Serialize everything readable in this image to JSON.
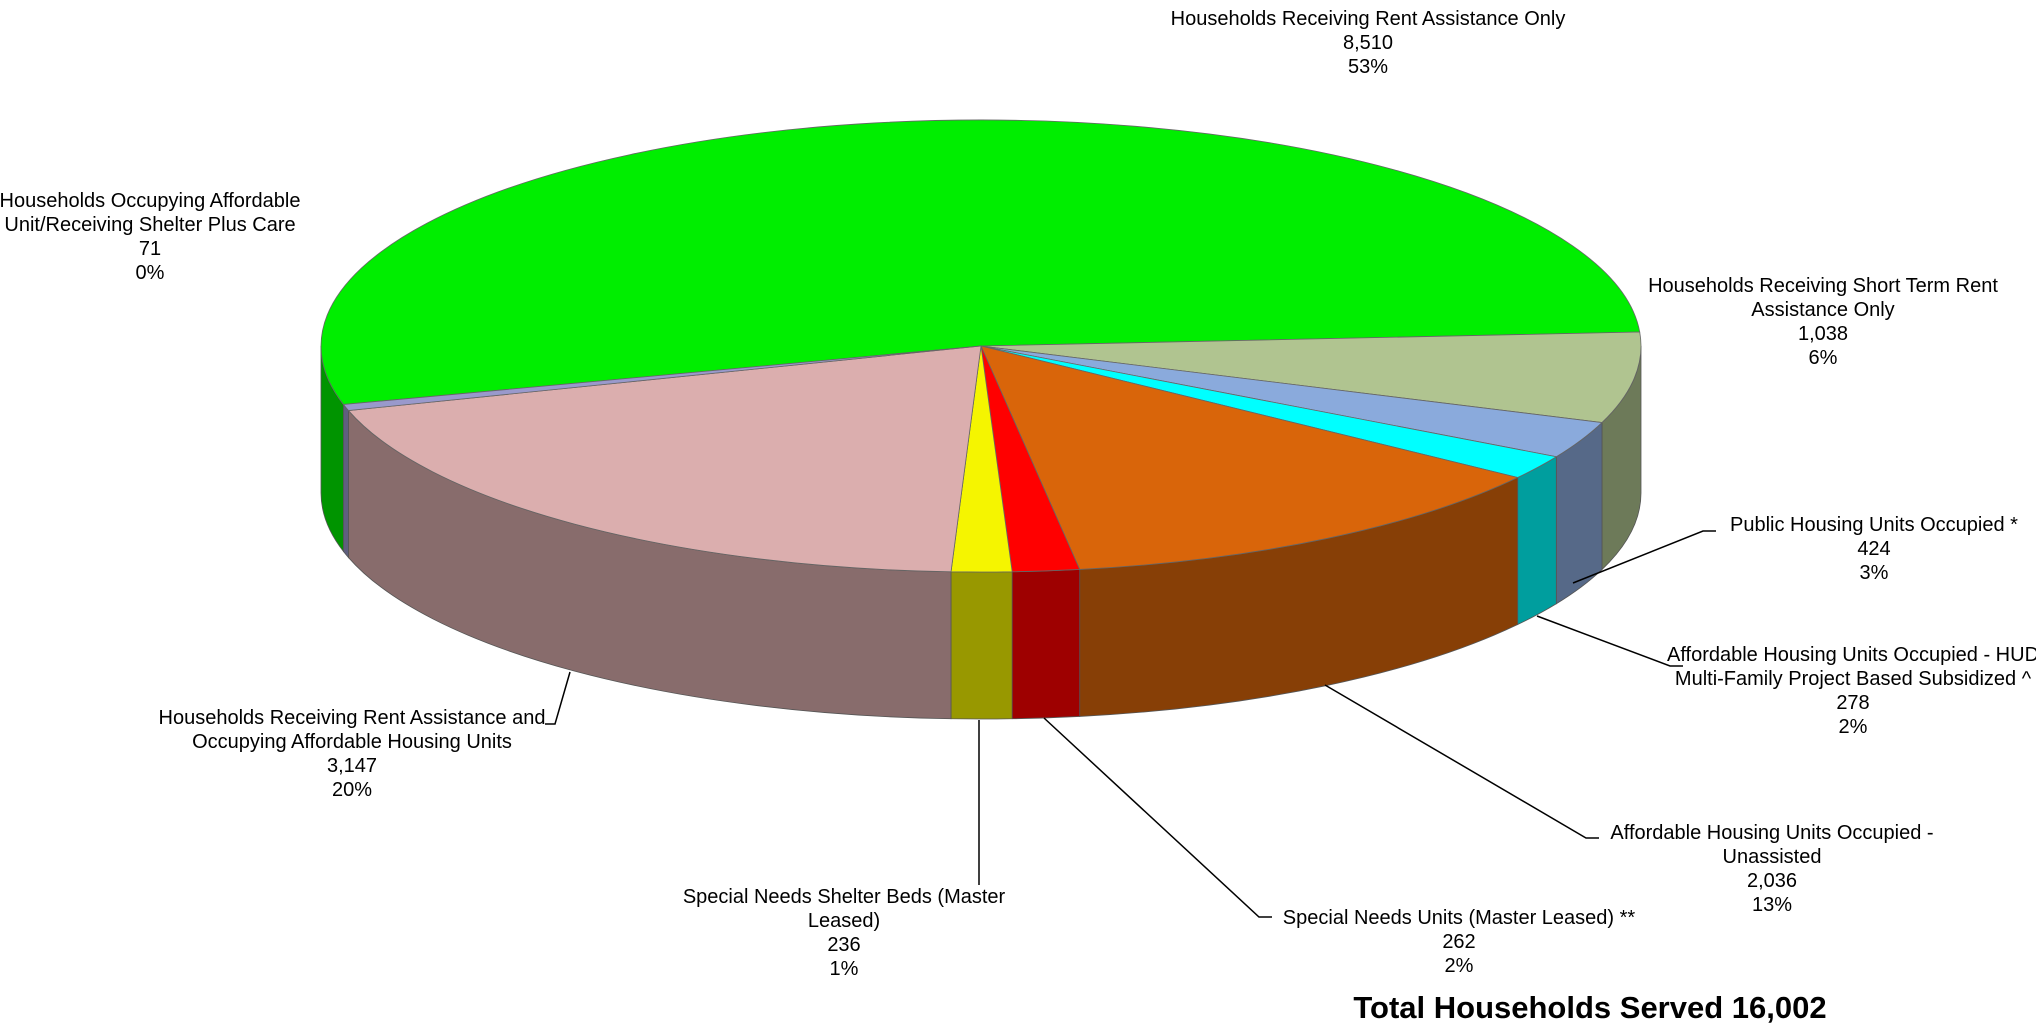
{
  "chart_data": {
    "type": "pie3d",
    "categories": [
      "Households Receiving Rent Assistance Only",
      "Households Receiving Short Term Rent Assistance Only",
      "Public Housing Units Occupied *",
      "Affordable Housing Units Occupied - HUD Multi-Family Project Based Subsidized ^",
      "Affordable Housing Units Occupied - Unassisted",
      "Special Needs Units (Master Leased) **",
      "Special Needs Shelter Beds (Master Leased)",
      "Households Receiving Rent Assistance and Occupying Affordable Housing Units",
      "Households Occupying Affordable Unit/Receiving Shelter Plus Care"
    ],
    "values": [
      8510,
      1038,
      424,
      278,
      2036,
      262,
      236,
      3147,
      71
    ],
    "value_labels": [
      "8,510",
      "1,038",
      "424",
      "278",
      "2,036",
      "262",
      "236",
      "3,147",
      "71"
    ],
    "percent_labels": [
      "53%",
      "6%",
      "3%",
      "2%",
      "13%",
      "2%",
      "1%",
      "20%",
      "0%"
    ],
    "colors": [
      "#00ee00",
      "#b0c490",
      "#8aaadc",
      "#00ffff",
      "#d9650a",
      "#ff0000",
      "#f5f500",
      "#dbaeae",
      "#9999cc"
    ],
    "total_label": "Total Households Served 16,002"
  }
}
